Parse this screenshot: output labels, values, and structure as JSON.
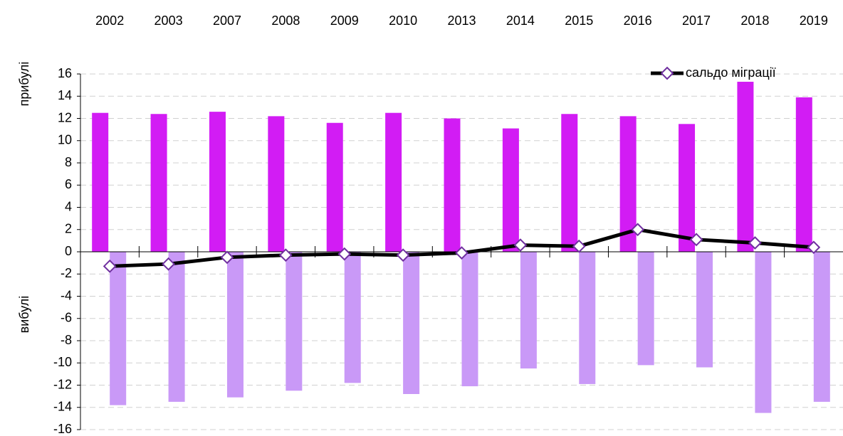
{
  "chart_data": {
    "type": "bar_line",
    "categories": [
      "2002",
      "2003",
      "2007",
      "2008",
      "2009",
      "2010",
      "2013",
      "2014",
      "2015",
      "2016",
      "2017",
      "2018",
      "2019"
    ],
    "series": [
      {
        "name": "прибулі",
        "color": "#d21cf4",
        "values": [
          12.5,
          12.4,
          12.6,
          12.2,
          11.6,
          12.5,
          12.0,
          11.1,
          12.4,
          12.2,
          11.5,
          15.3,
          13.9
        ]
      },
      {
        "name": "вибулі",
        "color": "#c999f7",
        "values": [
          -13.8,
          -13.5,
          -13.1,
          -12.5,
          -11.8,
          -12.8,
          -12.1,
          -10.5,
          -11.9,
          -10.2,
          -10.4,
          -14.5,
          -13.5
        ]
      },
      {
        "name": "сальдо міграції",
        "type": "line",
        "color": "#000000",
        "marker_color": "#7030a0",
        "values": [
          -1.3,
          -1.1,
          -0.5,
          -0.3,
          -0.2,
          -0.3,
          -0.1,
          0.6,
          0.5,
          2.0,
          1.1,
          0.8,
          0.4
        ]
      }
    ],
    "ylim": [
      -16,
      16
    ],
    "yticks": [
      -16,
      -14,
      -12,
      -10,
      -8,
      -6,
      -4,
      -2,
      0,
      2,
      4,
      6,
      8,
      10,
      12,
      14,
      16
    ],
    "grid": true,
    "legend": "top-right"
  }
}
